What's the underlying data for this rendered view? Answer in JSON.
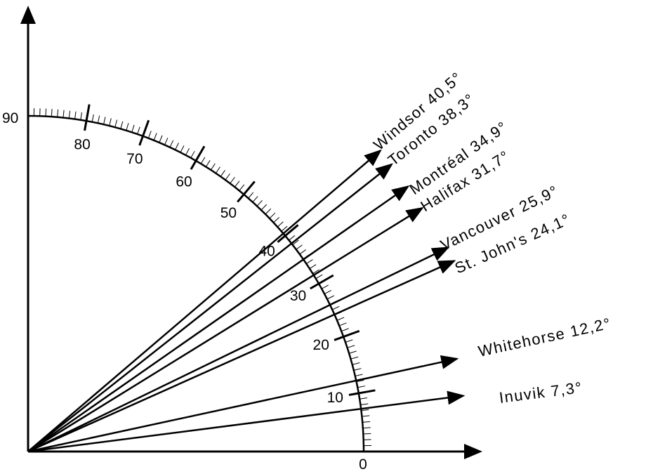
{
  "axes": {
    "x_label": "0",
    "y_label": "90"
  },
  "scale": {
    "min": 0,
    "max": 90,
    "minor_step": 1,
    "major_step": 10,
    "labels": [
      "10",
      "20",
      "30",
      "40",
      "50",
      "60",
      "70",
      "80"
    ]
  },
  "cities": [
    {
      "name": "Windsor",
      "angle": 40.5,
      "label": "Windsor 40,5°"
    },
    {
      "name": "Toronto",
      "angle": 38.3,
      "label": "Toronto 38,3°"
    },
    {
      "name": "Montréal",
      "angle": 34.9,
      "label": "Montréal 34,9°"
    },
    {
      "name": "Halifax",
      "angle": 31.7,
      "label": "Halifax 31,7°"
    },
    {
      "name": "Vancouver",
      "angle": 25.9,
      "label": "Vancouver 25,9°"
    },
    {
      "name": "St. John's",
      "angle": 24.1,
      "label": "St. John's 24,1°"
    },
    {
      "name": "Whitehorse",
      "angle": 12.2,
      "label": "Whitehorse 12,2°"
    },
    {
      "name": "Inuvik",
      "angle": 7.3,
      "label": "Inuvik 7,3°"
    }
  ],
  "colors": {
    "ink": "#000000",
    "background": "#ffffff"
  }
}
